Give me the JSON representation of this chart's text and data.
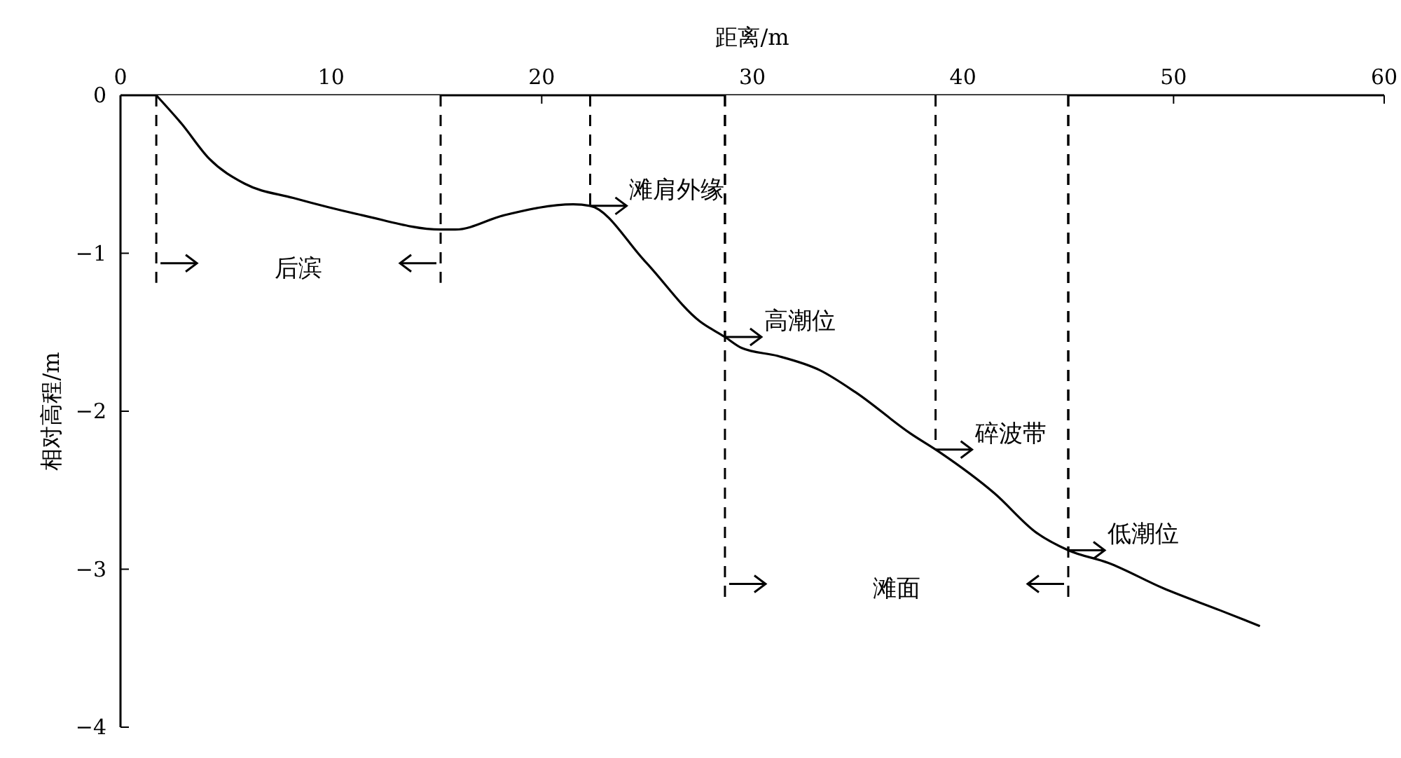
{
  "chart_data": {
    "type": "line",
    "xlabel": "距离/m",
    "ylabel": "相对高程/m",
    "xlim": [
      0,
      60
    ],
    "xticks": [
      0,
      10,
      20,
      30,
      40,
      50,
      60
    ],
    "ylim": [
      -4,
      0
    ],
    "yticks": [
      0,
      -1,
      -2,
      -3,
      -4
    ],
    "grid": false,
    "line_style": "solid",
    "series": [
      {
        "color": "#000000",
        "x": [
          1.7,
          2.9,
          4.2,
          5.9,
          8.2,
          11.5,
          15.2,
          15.9,
          18.2,
          21.5,
          22.3,
          24.9,
          27.5,
          28.7,
          29.5,
          31.2,
          33.2,
          34.9,
          37.5,
          38.9,
          41.5,
          43.5,
          45,
          46.9,
          49.5,
          52.2,
          54.1
        ],
        "values": [
          0,
          -0.18,
          -0.4,
          -0.56,
          -0.65,
          -0.76,
          -0.85,
          -0.85,
          -0.76,
          -0.69,
          -0.7,
          -1.05,
          -1.43,
          -1.53,
          -1.6,
          -1.65,
          -1.74,
          -1.88,
          -2.14,
          -2.26,
          -2.52,
          -2.77,
          -2.88,
          -2.96,
          -3.12,
          -3.26,
          -3.36
        ]
      }
    ],
    "ref_lines": [
      {
        "axis": "x",
        "value": 1.7,
        "line_style": "dashed"
      },
      {
        "axis": "x",
        "value": 15.2,
        "line_style": "dashed"
      },
      {
        "axis": "x",
        "value": 22.3,
        "label": "滩肩外缘",
        "line_style": "dashed"
      },
      {
        "axis": "x",
        "value": 28.7,
        "label": "高潮位",
        "line_style": "dashed"
      },
      {
        "axis": "x",
        "value": 38.7,
        "label": "碎波带",
        "line_style": "dashed"
      },
      {
        "axis": "x",
        "value": 45,
        "label": "低潮位",
        "line_style": "dashed"
      }
    ],
    "bands": [
      {
        "axis": "x",
        "from": 1.7,
        "to": 15.2,
        "label": "后滨",
        "color": "#ffffff"
      },
      {
        "axis": "x",
        "from": 28.7,
        "to": 45,
        "label": "滩面",
        "color": "#ffffff"
      }
    ]
  }
}
